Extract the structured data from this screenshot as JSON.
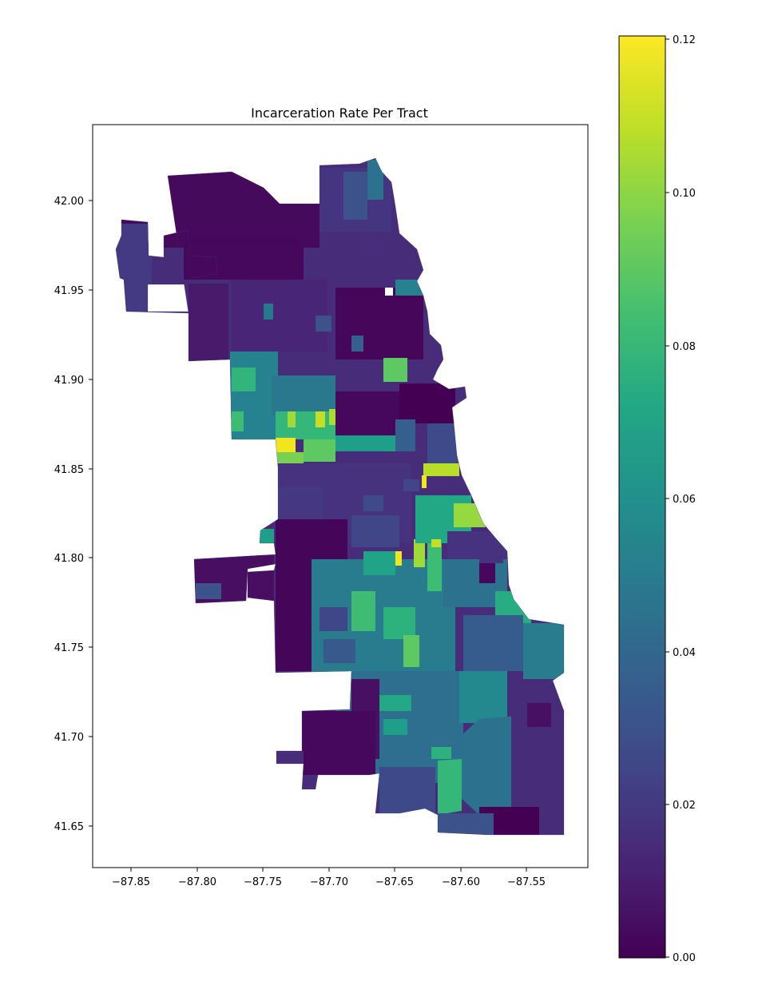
{
  "map": {
    "title": "Incarceration Rate Per Tract",
    "x_ticks": [
      "−87.85",
      "−87.80",
      "−87.75",
      "−87.70",
      "−87.65",
      "−87.60",
      "−87.55"
    ],
    "y_ticks": [
      "42.00",
      "41.95",
      "41.90",
      "41.85",
      "41.80",
      "41.75",
      "41.70",
      "41.65"
    ],
    "colorbar": {
      "ticks": [
        "0.12",
        "0.10",
        "0.08",
        "0.06",
        "0.04",
        "0.02",
        "0.00"
      ],
      "colormap": "viridis",
      "range": [
        0.0,
        0.12
      ]
    }
  }
}
